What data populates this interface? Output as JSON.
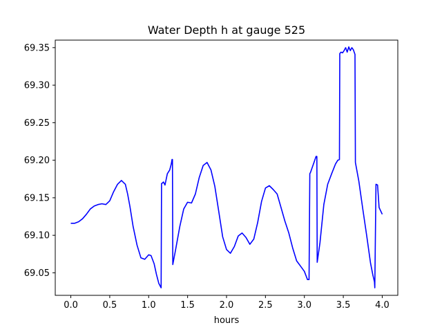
{
  "chart_data": {
    "type": "line",
    "title": "Water Depth h at gauge 525",
    "xlabel": "hours",
    "ylabel": "",
    "xlim": [
      -0.2,
      4.2
    ],
    "ylim": [
      69.02,
      69.36
    ],
    "xticks": [
      0.0,
      0.5,
      1.0,
      1.5,
      2.0,
      2.5,
      3.0,
      3.5,
      4.0
    ],
    "xtick_labels": [
      "0.0",
      "0.5",
      "1.0",
      "1.5",
      "2.0",
      "2.5",
      "3.0",
      "3.5",
      "4.0"
    ],
    "yticks": [
      69.05,
      69.1,
      69.15,
      69.2,
      69.25,
      69.3,
      69.35
    ],
    "ytick_labels": [
      "69.05",
      "69.10",
      "69.15",
      "69.20",
      "69.25",
      "69.30",
      "69.35"
    ],
    "grid": false,
    "series": [
      {
        "color": "#0000ff",
        "x": [
          0.0,
          0.05,
          0.1,
          0.15,
          0.2,
          0.25,
          0.3,
          0.35,
          0.4,
          0.45,
          0.5,
          0.55,
          0.6,
          0.65,
          0.7,
          0.73,
          0.76,
          0.8,
          0.85,
          0.9,
          0.95,
          1.0,
          1.03,
          1.07,
          1.1,
          1.13,
          1.16,
          1.165,
          1.17,
          1.19,
          1.21,
          1.24,
          1.27,
          1.29,
          1.3,
          1.305,
          1.31,
          1.35,
          1.4,
          1.45,
          1.5,
          1.55,
          1.6,
          1.65,
          1.7,
          1.75,
          1.8,
          1.85,
          1.9,
          1.95,
          2.0,
          2.05,
          2.1,
          2.15,
          2.2,
          2.25,
          2.3,
          2.35,
          2.4,
          2.45,
          2.5,
          2.55,
          2.6,
          2.65,
          2.7,
          2.75,
          2.8,
          2.85,
          2.9,
          2.95,
          3.0,
          3.04,
          3.06,
          3.07,
          3.08,
          3.11,
          3.13,
          3.15,
          3.16,
          3.165,
          3.2,
          3.25,
          3.3,
          3.35,
          3.4,
          3.43,
          3.45,
          3.455,
          3.47,
          3.49,
          3.51,
          3.53,
          3.55,
          3.57,
          3.59,
          3.61,
          3.63,
          3.65,
          3.655,
          3.7,
          3.75,
          3.8,
          3.85,
          3.88,
          3.9,
          3.905,
          3.92,
          3.94,
          3.96,
          4.0
        ],
        "y": [
          69.116,
          69.116,
          69.118,
          69.122,
          69.128,
          69.135,
          69.139,
          69.141,
          69.142,
          69.141,
          69.146,
          69.158,
          69.168,
          69.173,
          69.168,
          69.155,
          69.138,
          69.112,
          69.087,
          69.07,
          69.068,
          69.074,
          69.073,
          69.062,
          69.048,
          69.036,
          69.03,
          69.169,
          69.169,
          69.171,
          69.167,
          69.182,
          69.187,
          69.195,
          69.201,
          69.201,
          69.061,
          69.083,
          69.112,
          69.135,
          69.144,
          69.143,
          69.155,
          69.177,
          69.193,
          69.197,
          69.187,
          69.165,
          69.132,
          69.098,
          69.081,
          69.076,
          69.085,
          69.099,
          69.103,
          69.097,
          69.088,
          69.095,
          69.117,
          69.145,
          69.163,
          69.166,
          69.161,
          69.155,
          69.137,
          69.119,
          69.103,
          69.083,
          69.066,
          69.059,
          69.052,
          69.041,
          69.041,
          69.182,
          69.184,
          69.193,
          69.199,
          69.205,
          69.205,
          69.064,
          69.09,
          69.141,
          69.168,
          69.182,
          69.195,
          69.2,
          69.201,
          69.342,
          69.344,
          69.343,
          69.346,
          69.35,
          69.344,
          69.351,
          69.346,
          69.35,
          69.347,
          69.341,
          69.197,
          69.172,
          69.135,
          69.1,
          69.063,
          69.047,
          69.038,
          69.03,
          69.168,
          69.167,
          69.137,
          69.128
        ]
      }
    ]
  }
}
